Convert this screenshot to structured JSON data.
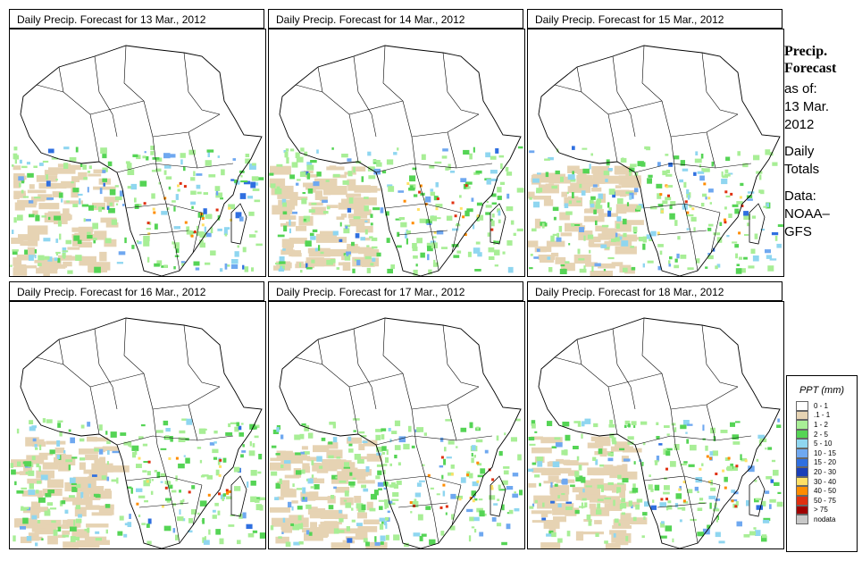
{
  "panels": [
    {
      "title": "Daily Precip. Forecast for  13 Mar., 2012"
    },
    {
      "title": "Daily Precip. Forecast for  14 Mar., 2012"
    },
    {
      "title": "Daily Precip. Forecast for  15 Mar., 2012"
    },
    {
      "title": "Daily Precip. Forecast for  16 Mar., 2012"
    },
    {
      "title": "Daily Precip. Forecast for  17 Mar., 2012"
    },
    {
      "title": "Daily Precip. Forecast for  18 Mar., 2012"
    }
  ],
  "sidebar": {
    "heading1": "Precip.",
    "heading2": "Forecast",
    "asof": "as of:",
    "date1": "13 Mar.",
    "date2": "2012",
    "totals1": "Daily",
    "totals2": "Totals",
    "data1": "Data:",
    "data2": "NOAA–",
    "data3": "GFS"
  },
  "legend": {
    "title": "PPT (mm)",
    "items": [
      {
        "label": "0 - 1",
        "color": "#ffffff"
      },
      {
        "label": ".1 - 1",
        "color": "#e6d3b3"
      },
      {
        "label": "1 - 2",
        "color": "#a8ee96"
      },
      {
        "label": "2 - 5",
        "color": "#55d455"
      },
      {
        "label": "5 - 10",
        "color": "#8fd6f0"
      },
      {
        "label": "10 - 15",
        "color": "#6fa8f0"
      },
      {
        "label": "15 - 20",
        "color": "#2f6fe0"
      },
      {
        "label": "20 - 30",
        "color": "#1a3fb8"
      },
      {
        "label": "30 - 40",
        "color": "#ffe066"
      },
      {
        "label": "40 - 50",
        "color": "#ff8c00"
      },
      {
        "label": "50 - 75",
        "color": "#e03010"
      },
      {
        "label": "> 75",
        "color": "#a00000"
      },
      {
        "label": "nodata",
        "color": "#c8c8c8"
      }
    ]
  }
}
